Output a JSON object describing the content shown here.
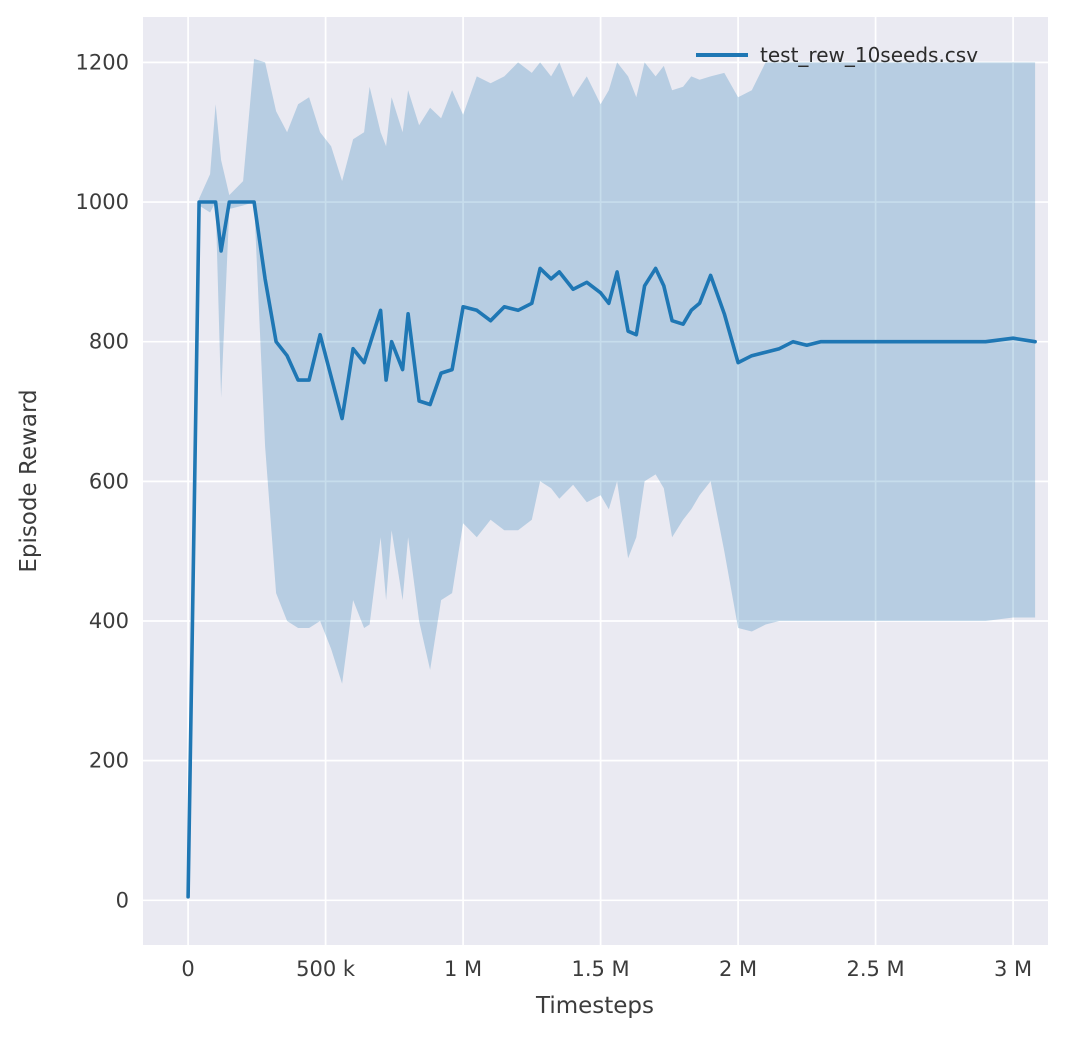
{
  "chart_data": {
    "type": "line",
    "title": "",
    "xlabel": "Timesteps",
    "ylabel": "Episode Reward",
    "legend_label": "test_rew_10seeds.csv",
    "legend_position": "upper right",
    "grid": true,
    "background": "#eaeaf2",
    "grid_color": "#ffffff",
    "line_color": "#1f77b4",
    "band_color": "#1f77b4",
    "band_opacity": 0.25,
    "xlim": [
      -164000,
      3127000
    ],
    "ylim": [
      -64,
      1265
    ],
    "x_ticks": [
      {
        "value": 0,
        "label": "0"
      },
      {
        "value": 500000,
        "label": "500 k"
      },
      {
        "value": 1000000,
        "label": "1 M"
      },
      {
        "value": 1500000,
        "label": "1.5 M"
      },
      {
        "value": 2000000,
        "label": "2 M"
      },
      {
        "value": 2500000,
        "label": "2.5 M"
      },
      {
        "value": 3000000,
        "label": "3 M"
      }
    ],
    "y_ticks": [
      {
        "value": 0,
        "label": "0"
      },
      {
        "value": 200,
        "label": "200"
      },
      {
        "value": 400,
        "label": "400"
      },
      {
        "value": 600,
        "label": "600"
      },
      {
        "value": 800,
        "label": "800"
      },
      {
        "value": 1000,
        "label": "1000"
      },
      {
        "value": 1200,
        "label": "1200"
      }
    ],
    "x": [
      0,
      40000,
      80000,
      100000,
      120000,
      150000,
      200000,
      240000,
      280000,
      320000,
      360000,
      400000,
      440000,
      480000,
      520000,
      560000,
      600000,
      640000,
      660000,
      700000,
      720000,
      740000,
      780000,
      800000,
      840000,
      880000,
      920000,
      960000,
      1000000,
      1050000,
      1100000,
      1150000,
      1200000,
      1250000,
      1280000,
      1320000,
      1350000,
      1400000,
      1450000,
      1500000,
      1530000,
      1560000,
      1600000,
      1630000,
      1660000,
      1700000,
      1730000,
      1760000,
      1800000,
      1830000,
      1860000,
      1900000,
      1950000,
      2000000,
      2050000,
      2100000,
      2150000,
      2200000,
      2250000,
      2300000,
      2400000,
      2500000,
      2600000,
      2700000,
      2800000,
      2900000,
      3000000,
      3080000
    ],
    "series": [
      {
        "name": "mean",
        "values": [
          5,
          1000,
          1000,
          1000,
          930,
          1000,
          1000,
          1000,
          890,
          800,
          780,
          745,
          745,
          810,
          750,
          690,
          790,
          770,
          795,
          845,
          745,
          800,
          760,
          840,
          715,
          710,
          755,
          760,
          850,
          845,
          830,
          850,
          845,
          855,
          905,
          890,
          900,
          875,
          885,
          870,
          855,
          900,
          815,
          810,
          880,
          905,
          880,
          830,
          825,
          845,
          855,
          895,
          840,
          770,
          780,
          785,
          790,
          800,
          795,
          800,
          800,
          800,
          800,
          800,
          800,
          800,
          805,
          800
        ]
      },
      {
        "name": "band_upper",
        "values": [
          10,
          1005,
          1040,
          1140,
          1060,
          1010,
          1030,
          1205,
          1200,
          1130,
          1100,
          1140,
          1150,
          1100,
          1080,
          1030,
          1090,
          1100,
          1165,
          1100,
          1080,
          1150,
          1100,
          1160,
          1110,
          1135,
          1120,
          1160,
          1125,
          1180,
          1170,
          1180,
          1200,
          1185,
          1200,
          1180,
          1200,
          1150,
          1180,
          1140,
          1160,
          1200,
          1180,
          1150,
          1200,
          1180,
          1195,
          1160,
          1165,
          1180,
          1175,
          1180,
          1185,
          1150,
          1160,
          1200,
          1200,
          1200,
          1200,
          1200,
          1200,
          1200,
          1200,
          1200,
          1200,
          1200,
          1200,
          1200
        ]
      },
      {
        "name": "band_lower",
        "values": [
          0,
          995,
          985,
          1000,
          720,
          990,
          995,
          1000,
          650,
          440,
          400,
          390,
          390,
          400,
          360,
          310,
          430,
          390,
          395,
          520,
          430,
          530,
          430,
          520,
          400,
          330,
          430,
          440,
          540,
          520,
          545,
          530,
          530,
          545,
          600,
          590,
          575,
          595,
          570,
          580,
          560,
          600,
          490,
          520,
          600,
          610,
          590,
          520,
          545,
          560,
          580,
          600,
          500,
          390,
          385,
          395,
          400,
          400,
          400,
          400,
          400,
          400,
          400,
          400,
          400,
          400,
          405,
          405
        ]
      }
    ]
  }
}
